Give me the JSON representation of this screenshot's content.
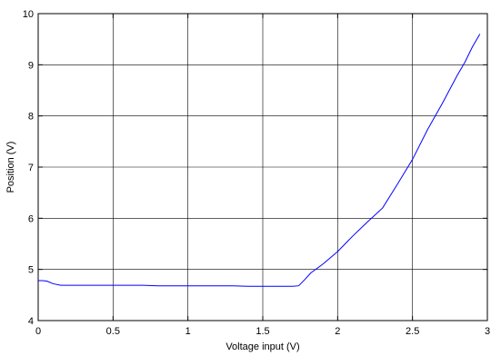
{
  "chart_data": {
    "type": "line",
    "title": "",
    "xlabel": "Voltage input (V)",
    "ylabel": "Position (V)",
    "xlim": [
      0,
      3
    ],
    "ylim": [
      4,
      10
    ],
    "xticks": [
      0,
      0.5,
      1,
      1.5,
      2,
      2.5,
      3
    ],
    "xtick_labels": [
      "0",
      "0.5",
      "1",
      "1.5",
      "2",
      "2.5",
      "3"
    ],
    "yticks": [
      4,
      5,
      6,
      7,
      8,
      9,
      10
    ],
    "ytick_labels": [
      "4",
      "5",
      "6",
      "7",
      "8",
      "9",
      "10"
    ],
    "grid": true,
    "line_color": "#0000ff",
    "series": [
      {
        "x": [
          0.0,
          0.03,
          0.06,
          0.1,
          0.15,
          0.2,
          0.3,
          0.4,
          0.5,
          0.6,
          0.7,
          0.8,
          0.9,
          1.0,
          1.1,
          1.2,
          1.3,
          1.4,
          1.5,
          1.6,
          1.7,
          1.74,
          1.78,
          1.82,
          1.9,
          2.0,
          2.1,
          2.2,
          2.3,
          2.4,
          2.5,
          2.6,
          2.7,
          2.8,
          2.85,
          2.9,
          2.95
        ],
        "y": [
          4.78,
          4.78,
          4.77,
          4.72,
          4.69,
          4.69,
          4.69,
          4.69,
          4.69,
          4.69,
          4.69,
          4.68,
          4.68,
          4.68,
          4.68,
          4.68,
          4.68,
          4.67,
          4.67,
          4.67,
          4.67,
          4.68,
          4.8,
          4.93,
          5.1,
          5.35,
          5.65,
          5.93,
          6.2,
          6.67,
          7.15,
          7.73,
          8.25,
          8.8,
          9.05,
          9.35,
          9.6
        ]
      }
    ]
  }
}
